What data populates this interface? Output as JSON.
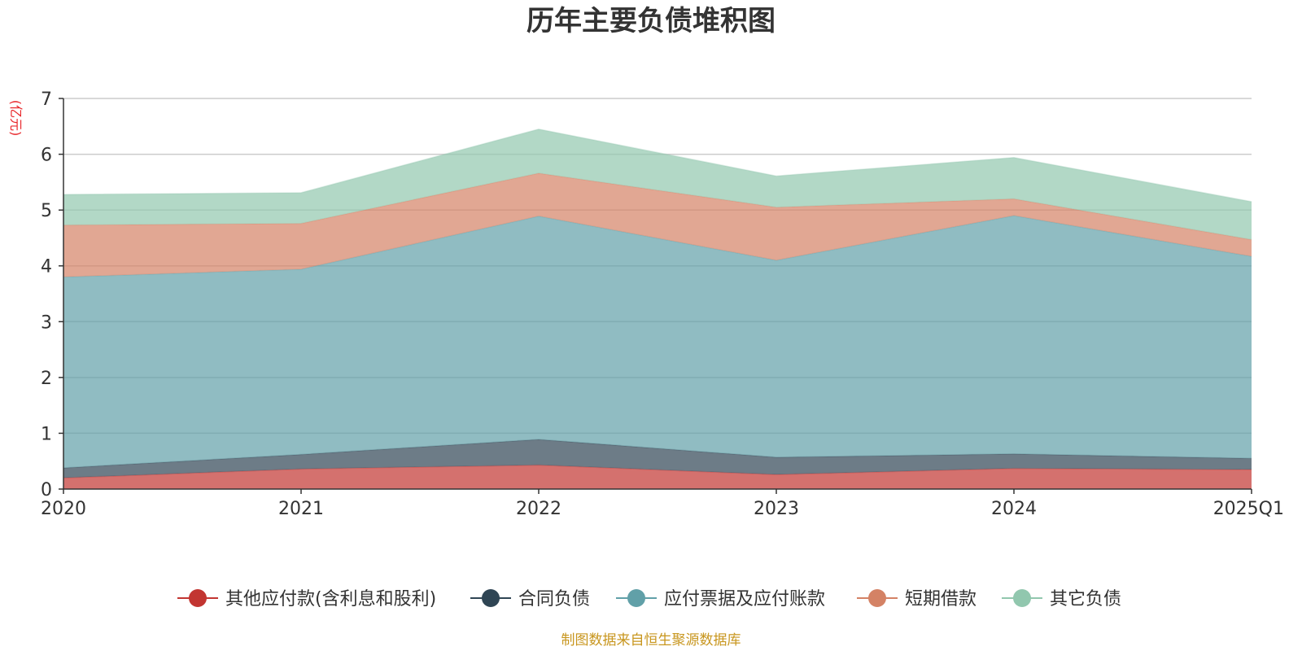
{
  "chart_data": {
    "type": "area",
    "stacked": true,
    "title": "历年主要负债堆积图",
    "unit_label": "(亿元)",
    "source_note": "制图数据来自恒生聚源数据库",
    "x": [
      "2020",
      "2021",
      "2022",
      "2023",
      "2024",
      "2025Q1"
    ],
    "ylim": [
      0,
      7
    ],
    "yticks": [
      0,
      1,
      2,
      3,
      4,
      5,
      6,
      7
    ],
    "grid": true,
    "legend_position": "bottom",
    "series": [
      {
        "name": "其他应付款(含利息和股利)",
        "color": "#c23531",
        "values": [
          0.2,
          0.36,
          0.43,
          0.26,
          0.37,
          0.35
        ]
      },
      {
        "name": "合同负债",
        "color": "#2f4554",
        "values": [
          0.18,
          0.26,
          0.46,
          0.31,
          0.26,
          0.2
        ]
      },
      {
        "name": "应付票据及应付账款",
        "color": "#61a0a8",
        "values": [
          3.42,
          3.32,
          4.0,
          3.53,
          4.27,
          3.62
        ]
      },
      {
        "name": "短期借款",
        "color": "#d48265",
        "values": [
          0.93,
          0.82,
          0.77,
          0.95,
          0.3,
          0.3
        ]
      },
      {
        "name": "其它负债",
        "color": "#91c7ae",
        "values": [
          0.55,
          0.55,
          0.79,
          0.56,
          0.74,
          0.68
        ]
      }
    ]
  }
}
